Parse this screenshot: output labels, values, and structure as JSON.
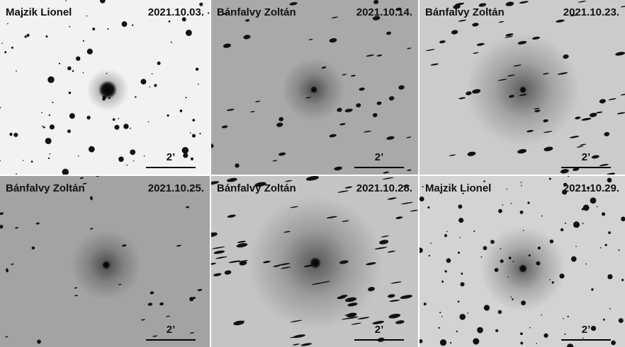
{
  "panels": [
    {
      "observer": "Majzik Lionel",
      "date": "2021.10.03.",
      "scale": "2’"
    },
    {
      "observer": "Bánfalvy Zoltán",
      "date": "2021.10.14.",
      "scale": "2’"
    },
    {
      "observer": "Bánfalvy Zoltán",
      "date": "2021.10.23.",
      "scale": "2’"
    },
    {
      "observer": "Bánfalvy Zoltán",
      "date": "2021.10.25.",
      "scale": "2’"
    },
    {
      "observer": "Bánfalvy Zoltán",
      "date": "2021.10.28.",
      "scale": "2’"
    },
    {
      "observer": "Majzik Lionel",
      "date": "2021.10.29.",
      "scale": "2’"
    }
  ]
}
